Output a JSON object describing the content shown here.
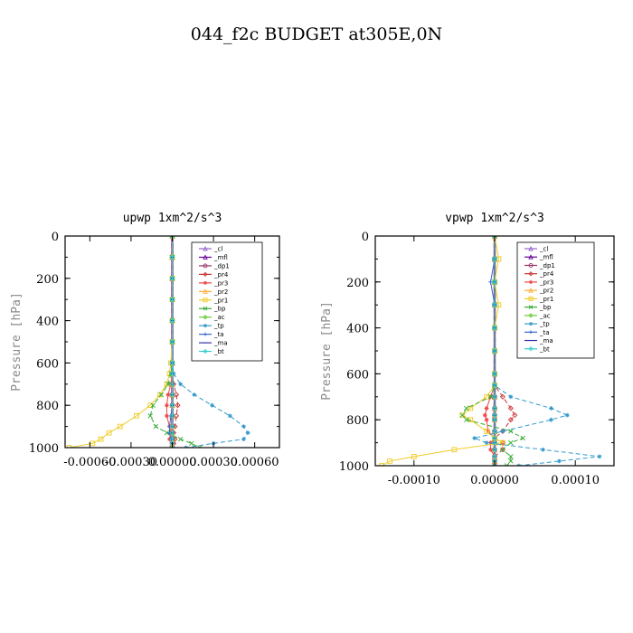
{
  "title": "044_f2c  BUDGET at305E,0N",
  "chart_data": [
    {
      "type": "line",
      "title": "upwp   1xm^2/s^3",
      "ylabel": "Pressure [hPa]",
      "xlabel": "",
      "xlim": [
        -0.00078,
        0.00078
      ],
      "ylim": [
        1000,
        0
      ],
      "xticks": [
        -0.0006,
        -0.0003,
        0.0,
        0.0003,
        0.0006
      ],
      "xtick_labels": [
        "-0.00060",
        "-0.00030",
        "0.00000",
        "0.00030",
        "0.00060"
      ],
      "yticks": [
        0,
        200,
        400,
        600,
        800,
        1000
      ],
      "ytick_labels": [
        "0",
        "200",
        "400",
        "600",
        "800",
        "1000"
      ],
      "legend_position": "top-right",
      "pressure": [
        0,
        100,
        200,
        300,
        400,
        500,
        600,
        650,
        700,
        750,
        800,
        850,
        900,
        930,
        960,
        980,
        1000
      ],
      "series": [
        {
          "name": "_cl",
          "color": "#9966cc",
          "values": [
            0,
            0,
            0,
            0,
            0,
            0,
            0,
            0,
            0,
            0,
            0,
            0,
            0,
            0,
            0,
            0,
            0
          ]
        },
        {
          "name": "_mfl",
          "color": "#660099",
          "values": [
            0,
            0,
            0,
            0,
            0,
            0,
            0,
            0,
            0,
            0,
            0,
            0,
            0,
            0,
            0,
            0,
            0
          ]
        },
        {
          "name": "_dp1",
          "color": "#993366",
          "values": [
            0,
            0,
            0,
            0,
            0,
            0,
            0,
            0,
            0,
            0,
            0,
            0,
            0,
            0,
            0,
            0,
            0
          ]
        },
        {
          "name": "_pr4",
          "color": "#cc3333",
          "values": [
            0,
            0,
            0,
            0,
            0,
            0,
            0,
            0,
            1e-05,
            3e-05,
            4e-05,
            3e-05,
            2e-05,
            1e-05,
            2e-05,
            1e-05,
            0
          ]
        },
        {
          "name": "_pr3",
          "color": "#ee4444",
          "values": [
            0,
            0,
            0,
            0,
            0,
            0,
            0,
            0,
            -1e-05,
            -3e-05,
            -4e-05,
            -4e-05,
            -2e-05,
            -1e-05,
            -2e-05,
            0,
            0
          ]
        },
        {
          "name": "_pr2",
          "color": "#ffaa33",
          "values": [
            0,
            0,
            0,
            0,
            0,
            0,
            0,
            0,
            0,
            0,
            0,
            0,
            0,
            0,
            0,
            0,
            0
          ]
        },
        {
          "name": "_pr1",
          "color": "#eecc22",
          "values": [
            0,
            0,
            0,
            0,
            0,
            0,
            -1e-05,
            -2e-05,
            -4e-05,
            -9e-05,
            -0.00016,
            -0.00026,
            -0.00038,
            -0.00046,
            -0.00052,
            -0.00058,
            -0.00075
          ]
        },
        {
          "name": "_bp",
          "color": "#33aa33",
          "values": [
            0,
            0,
            0,
            0,
            0,
            0,
            0,
            -1e-05,
            -3e-05,
            -8e-05,
            -0.00014,
            -0.00016,
            -0.00012,
            -4e-05,
            6e-05,
            0.00014,
            0.0002
          ]
        },
        {
          "name": "_ac",
          "color": "#66cc33",
          "values": [
            0,
            0,
            0,
            0,
            0,
            0,
            0,
            0,
            0,
            0,
            0,
            0,
            0,
            0,
            0,
            0,
            0
          ]
        },
        {
          "name": "_tp",
          "color": "#3399cc",
          "values": [
            0,
            0,
            0,
            0,
            0,
            0,
            0,
            1e-05,
            6e-05,
            0.00016,
            0.00029,
            0.00042,
            0.00052,
            0.00055,
            0.00052,
            0.0003,
            0.0001
          ]
        },
        {
          "name": "_ta",
          "color": "#3366cc",
          "values": [
            0,
            0,
            0,
            0,
            0,
            0,
            0,
            0,
            0,
            0,
            0,
            -1e-05,
            -2e-05,
            -2e-05,
            -1e-05,
            0,
            0
          ]
        },
        {
          "name": "_ma",
          "color": "#3333aa",
          "values": [
            0,
            0,
            0,
            0,
            0,
            0,
            0,
            0,
            0,
            0,
            0,
            0,
            0,
            0,
            0,
            0,
            0
          ]
        },
        {
          "name": "_bt",
          "color": "#33cccc",
          "values": [
            0,
            0,
            0,
            0,
            0,
            0,
            0,
            0,
            0,
            0,
            0,
            0,
            0,
            0,
            0,
            0,
            0
          ]
        }
      ]
    },
    {
      "type": "line",
      "title": "vpwp   1xm^2/s^3",
      "ylabel": "Pressure [hPa]",
      "xlabel": "",
      "xlim": [
        -0.000148,
        0.000148
      ],
      "ylim": [
        1000,
        0
      ],
      "xticks": [
        -0.0001,
        0.0,
        0.0001
      ],
      "xtick_labels": [
        "-0.00010",
        "0.00000",
        "0.00010"
      ],
      "yticks": [
        0,
        200,
        400,
        600,
        800,
        1000
      ],
      "ytick_labels": [
        "0",
        "200",
        "400",
        "600",
        "800",
        "1000"
      ],
      "legend_position": "top-right",
      "pressure": [
        0,
        100,
        200,
        300,
        400,
        500,
        600,
        650,
        700,
        750,
        780,
        800,
        850,
        880,
        900,
        930,
        960,
        980,
        1000
      ],
      "series": [
        {
          "name": "_cl",
          "color": "#9966cc",
          "values": [
            0,
            0,
            0,
            0,
            0,
            0,
            0,
            0,
            0,
            0,
            0,
            0,
            0,
            0,
            0,
            0,
            0,
            0,
            0
          ]
        },
        {
          "name": "_mfl",
          "color": "#660099",
          "values": [
            0,
            0,
            0,
            0,
            0,
            0,
            0,
            0,
            0,
            0,
            0,
            0,
            0,
            0,
            0,
            0,
            0,
            0,
            0
          ]
        },
        {
          "name": "_dp1",
          "color": "#993366",
          "values": [
            0,
            0,
            0,
            0,
            0,
            0,
            0,
            0,
            0,
            0,
            0,
            0,
            0,
            0,
            0,
            0,
            0,
            0,
            0
          ]
        },
        {
          "name": "_pr4",
          "color": "#cc3333",
          "values": [
            0,
            0,
            0,
            0,
            0,
            0,
            0,
            0,
            1e-05,
            2e-05,
            2.5e-05,
            2e-05,
            1e-05,
            0,
            1e-05,
            1e-05,
            0,
            0,
            0
          ]
        },
        {
          "name": "_pr3",
          "color": "#ee4444",
          "values": [
            0,
            0,
            0,
            0,
            0,
            0,
            0,
            0,
            -5e-06,
            -1e-05,
            -1.2e-05,
            -1e-05,
            -8e-06,
            0,
            -5e-06,
            -5e-06,
            0,
            0,
            0
          ]
        },
        {
          "name": "_pr2",
          "color": "#ffaa33",
          "values": [
            0,
            0,
            0,
            0,
            0,
            0,
            0,
            0,
            0,
            0,
            0,
            0,
            0,
            0,
            0,
            0,
            0,
            0,
            0
          ]
        },
        {
          "name": "_pr1",
          "color": "#eecc22",
          "values": [
            0,
            5e-06,
            0,
            5e-06,
            0,
            0,
            0,
            0,
            -1e-05,
            -3e-05,
            -4e-05,
            -3e-05,
            -1e-05,
            0,
            1e-05,
            -5e-05,
            -0.0001,
            -0.00013,
            -0.00014
          ]
        },
        {
          "name": "_bp",
          "color": "#33aa33",
          "values": [
            0,
            0,
            0,
            0,
            0,
            0,
            0,
            0,
            -5e-06,
            -3.5e-05,
            -4e-05,
            -3.5e-05,
            2e-05,
            3.5e-05,
            2e-05,
            1e-05,
            2e-05,
            2e-05,
            1.5e-05
          ]
        },
        {
          "name": "_ac",
          "color": "#66cc33",
          "values": [
            0,
            0,
            0,
            0,
            0,
            0,
            0,
            0,
            0,
            0,
            0,
            0,
            0,
            0,
            0,
            0,
            0,
            0,
            0
          ]
        },
        {
          "name": "_tp",
          "color": "#3399cc",
          "values": [
            0,
            0,
            0,
            0,
            0,
            0,
            0,
            0,
            2e-05,
            7e-05,
            9e-05,
            7e-05,
            1e-05,
            -2.5e-05,
            -1e-05,
            6e-05,
            0.00013,
            8e-05,
            3e-05
          ]
        },
        {
          "name": "_ta",
          "color": "#3366cc",
          "values": [
            0,
            0,
            -5e-06,
            0,
            0,
            0,
            0,
            0,
            0,
            0,
            0,
            0,
            0,
            0,
            0,
            0,
            0,
            0,
            0
          ]
        },
        {
          "name": "_ma",
          "color": "#3333aa",
          "values": [
            0,
            0,
            0,
            0,
            0,
            0,
            0,
            0,
            0,
            0,
            0,
            0,
            0,
            0,
            0,
            0,
            0,
            0,
            0
          ]
        },
        {
          "name": "_bt",
          "color": "#33cccc",
          "values": [
            0,
            0,
            0,
            0,
            0,
            0,
            0,
            0,
            0,
            0,
            0,
            0,
            0,
            0,
            0,
            0,
            0,
            0,
            0
          ]
        }
      ]
    }
  ]
}
